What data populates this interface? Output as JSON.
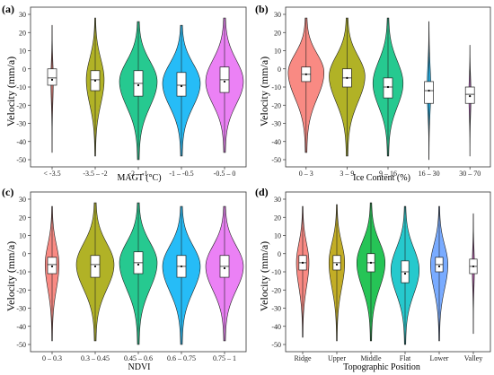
{
  "chart_data": [
    {
      "panel": "(a)",
      "type": "violin",
      "ylabel": "Velocity (mm/a)",
      "xlabel": "MAGT (°C)",
      "ylim": [
        -50,
        30
      ],
      "yticks": [
        30,
        20,
        10,
        0,
        -10,
        -20,
        -30,
        -40,
        -50
      ],
      "categories": [
        "< -3.5",
        "-3.5 – -2",
        "-2 – -1",
        "-1 – -0.5",
        "-0.5 – 0"
      ],
      "colors": [
        "#f8766d",
        "#a3a500",
        "#00bf7d",
        "#00b0f6",
        "#e76bf3"
      ],
      "violin_widths": [
        0.06,
        0.45,
        0.95,
        0.95,
        0.95
      ],
      "min": [
        -46,
        -48,
        -50,
        -48,
        -46
      ],
      "max": [
        24,
        28,
        26,
        24,
        28
      ],
      "q1": [
        -9,
        -12,
        -15,
        -15,
        -13
      ],
      "median": [
        -5,
        -6,
        -8,
        -9,
        -6
      ],
      "q3": [
        0,
        -1,
        -1,
        -2,
        1
      ],
      "mean": [
        -6,
        -6.5,
        -9,
        -9.5,
        -7
      ],
      "mode": [
        -6,
        -6,
        -7,
        -8,
        -7
      ]
    },
    {
      "panel": "(b)",
      "type": "violin",
      "ylabel": "Velocity (mm/a)",
      "xlabel": "Ice Content (%)",
      "ylim": [
        -50,
        30
      ],
      "yticks": [
        30,
        20,
        10,
        0,
        -10,
        -20,
        -30,
        -40,
        -50
      ],
      "categories": [
        "0 – 3",
        "3 – 9",
        "9 – 16",
        "16 – 30",
        "30 – 70"
      ],
      "colors": [
        "#f8766d",
        "#a3a500",
        "#00bf7d",
        "#00b0f6",
        "#e76bf3"
      ],
      "violin_widths": [
        0.95,
        0.95,
        0.8,
        0.1,
        0.05
      ],
      "min": [
        -46,
        -48,
        -48,
        -50,
        -48
      ],
      "max": [
        28,
        28,
        28,
        26,
        13
      ],
      "q1": [
        -7,
        -10,
        -16,
        -19,
        -19
      ],
      "median": [
        -3,
        -5,
        -10,
        -12,
        -14
      ],
      "q3": [
        1,
        0,
        -5,
        -7,
        -10
      ],
      "mean": [
        -3,
        -5,
        -10,
        -12,
        -15
      ],
      "mode": [
        -2,
        -4,
        -8,
        -11,
        -14
      ]
    },
    {
      "panel": "(c)",
      "type": "violin",
      "ylabel": "Velocity (mm/a)",
      "xlabel": "NDVI",
      "ylim": [
        -50,
        30
      ],
      "yticks": [
        30,
        20,
        10,
        0,
        -10,
        -20,
        -30,
        -40,
        -50
      ],
      "categories": [
        "0 – 0.3",
        "0.3 – 0.45",
        "0.45 – 0.6",
        "0.6 – 0.75",
        "0.75 – 1"
      ],
      "colors": [
        "#f8766d",
        "#a3a500",
        "#00bf7d",
        "#00b0f6",
        "#e76bf3"
      ],
      "violin_widths": [
        0.35,
        0.95,
        0.95,
        0.95,
        0.95
      ],
      "min": [
        -48,
        -48,
        -50,
        -50,
        -48
      ],
      "max": [
        26,
        28,
        28,
        26,
        26
      ],
      "q1": [
        -11,
        -13,
        -11,
        -13,
        -13
      ],
      "median": [
        -6,
        -6,
        -5,
        -7,
        -7
      ],
      "q3": [
        -2,
        -1,
        1,
        -1,
        -1
      ],
      "mean": [
        -7,
        -7,
        -6,
        -7,
        -8
      ],
      "mode": [
        -6,
        -6,
        -5,
        -7,
        -7
      ]
    },
    {
      "panel": "(d)",
      "type": "violin",
      "ylabel": "Velocity (mm/a)",
      "xlabel": "Topographic Position",
      "ylim": [
        -50,
        30
      ],
      "yticks": [
        30,
        20,
        10,
        0,
        -10,
        -20,
        -30,
        -40,
        -50
      ],
      "categories": [
        "Ridge",
        "Upper",
        "Middle",
        "Flat",
        "Lower",
        "Valley"
      ],
      "colors": [
        "#f8766d",
        "#b79f00",
        "#00ba38",
        "#00bfc4",
        "#619cff",
        "#f564e3"
      ],
      "violin_widths": [
        0.4,
        0.5,
        0.9,
        0.9,
        0.55,
        0.05
      ],
      "min": [
        -46,
        -48,
        -48,
        -50,
        -48,
        -44
      ],
      "max": [
        26,
        27,
        28,
        26,
        26,
        22
      ],
      "q1": [
        -9,
        -9,
        -10,
        -16,
        -10,
        -11
      ],
      "median": [
        -5,
        -5,
        -5,
        -10,
        -6,
        -7
      ],
      "q3": [
        -1,
        -1,
        0,
        -4,
        -2,
        -3
      ],
      "mean": [
        -5,
        -6,
        -5,
        -11,
        -7,
        -7
      ],
      "mode": [
        -5,
        -5,
        -5,
        -9,
        -6,
        -7
      ]
    }
  ]
}
